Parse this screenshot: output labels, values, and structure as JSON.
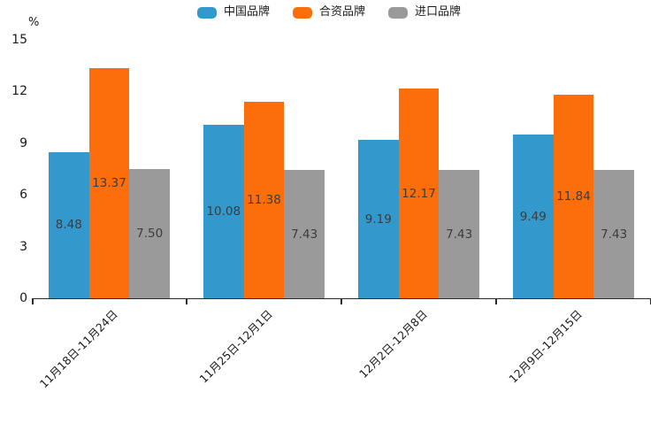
{
  "chart_data": {
    "type": "bar",
    "title": "",
    "ylabel": "%",
    "xlabel": "",
    "categories": [
      "11月18日-11月24日",
      "11月25日-12月1日",
      "12月2日-12月8日",
      "12月9日-12月15日"
    ],
    "series": [
      {
        "name": "中国品牌",
        "color": "#3398cb",
        "values": [
          8.48,
          10.08,
          9.19,
          9.49
        ]
      },
      {
        "name": "合资品牌",
        "color": "#fc6e0b",
        "values": [
          13.37,
          11.38,
          12.17,
          11.84
        ]
      },
      {
        "name": "进口品牌",
        "color": "#9a9a9a",
        "values": [
          7.5,
          7.43,
          7.43,
          7.43
        ]
      }
    ],
    "value_labels": [
      [
        "8.48",
        "10.08",
        "9.19",
        "9.49"
      ],
      [
        "13.37",
        "11.38",
        "12.17",
        "11.84"
      ],
      [
        "7.50",
        "7.43",
        "7.43",
        "7.43"
      ]
    ],
    "yticks": [
      0,
      3,
      6,
      9,
      12,
      15
    ],
    "ylim": [
      0,
      15
    ],
    "grid": false,
    "legend_position": "top",
    "xtick_rotation_deg": 45
  },
  "colors": {
    "background": "#ffffff",
    "axis": "#2b2b2b",
    "tick_label_text": "#1a1a1a",
    "value_label_text": "#3d3d3d",
    "series_blue": "#3398cb",
    "series_orange": "#fc6e0b",
    "series_gray": "#9a9a9a"
  }
}
